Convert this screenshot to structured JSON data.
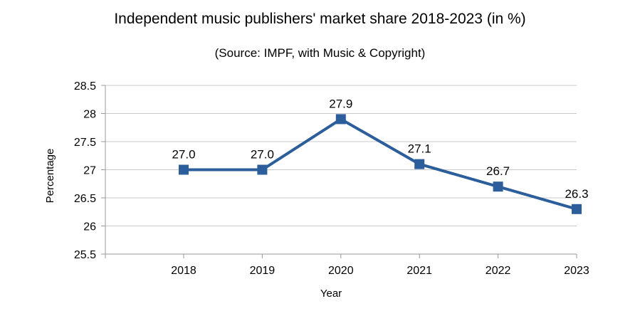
{
  "chart_data": {
    "type": "line",
    "title": "Independent music publishers' market share 2018-2023 (in %)",
    "subtitle": "(Source: IMPF, with Music & Copyright)",
    "xlabel": "Year",
    "ylabel": "Percentage",
    "categories": [
      "2018",
      "2019",
      "2020",
      "2021",
      "2022",
      "2023"
    ],
    "series": [
      {
        "values": [
          27.0,
          27.0,
          27.9,
          27.1,
          26.7,
          26.3
        ],
        "data_labels": [
          "27.0",
          "27.0",
          "27.9",
          "27.1",
          "26.7",
          "26.3"
        ],
        "color": "#2b5e9b",
        "marker": "square"
      }
    ],
    "ylim": [
      25.5,
      28.5
    ],
    "y_ticks": [
      "25.5",
      "26",
      "26.5",
      "27",
      "27.5",
      "28",
      "28.5"
    ],
    "grid": true,
    "gridline_color": "#c8c8c8",
    "axis_color": "#999999"
  }
}
